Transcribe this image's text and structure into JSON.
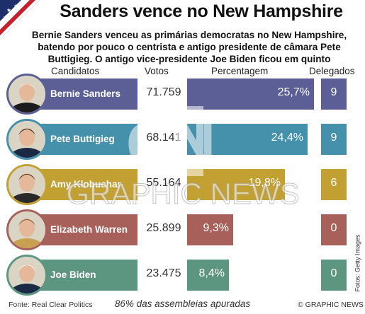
{
  "title": "Sanders vence no New Hampshire",
  "subtitle": "Bernie Sanders venceu as primárias democratas no New Hampshire, batendo por pouco o centrista e antigo presidente de câmara Pete Buttigieg. O antigo vice-presidente Joe Biden ficou em quinto",
  "headers": {
    "candidates": "Candidatos",
    "votes": "Votos",
    "percentage": "Percentagem",
    "delegates": "Delegados"
  },
  "colors": {
    "sanders": "#5b5f96",
    "buttigieg": "#4590ab",
    "klobuchar": "#c3a032",
    "warren": "#a8605a",
    "biden": "#5d9680"
  },
  "icons": {
    "flag": "us-flag-icon",
    "avatar": "candidate-photo"
  },
  "chart_data": {
    "type": "bar",
    "categories": [
      "Bernie Sanders",
      "Pete Buttigieg",
      "Amy Klobuchar",
      "Elizabeth Warren",
      "Joe Biden"
    ],
    "series": [
      {
        "name": "Votos",
        "values": [
          71759,
          68141,
          55164,
          25899,
          23475
        ]
      },
      {
        "name": "Percentagem",
        "values": [
          25.7,
          24.4,
          19.8,
          9.3,
          8.4
        ]
      },
      {
        "name": "Delegados",
        "values": [
          9,
          9,
          6,
          0,
          0
        ]
      }
    ]
  },
  "rows": [
    {
      "name": "Bernie Sanders",
      "votes": "71.759",
      "pct": "25,7%",
      "pct_value": 25.7,
      "delegates": "9",
      "color": "#5b5f96"
    },
    {
      "name": "Pete Buttigieg",
      "votes": "68.141",
      "pct": "24,4%",
      "pct_value": 24.4,
      "delegates": "9",
      "color": "#4590ab"
    },
    {
      "name": "Amy Klobuchar",
      "votes": "55.164",
      "pct": "19,8%",
      "pct_value": 19.8,
      "delegates": "6",
      "color": "#c3a032"
    },
    {
      "name": "Elizabeth Warren",
      "votes": "25.899",
      "pct": "9,3%",
      "pct_value": 9.3,
      "delegates": "0",
      "color": "#a8605a"
    },
    {
      "name": "Joe Biden",
      "votes": "23.475",
      "pct": "8,4%",
      "pct_value": 8.4,
      "delegates": "0",
      "color": "#5d9680"
    }
  ],
  "watermark": {
    "logo": "GN",
    "text": "GRAPHIC NEWS"
  },
  "photo_credit": "Fotos: Getty Images",
  "footer": {
    "source": "Fonte: Real Clear Politics",
    "note": "86% das assembleias apuradas",
    "copyright": "© GRAPHIC NEWS"
  }
}
